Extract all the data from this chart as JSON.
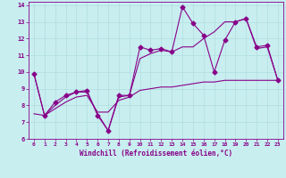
{
  "xlabel": "Windchill (Refroidissement éolien,°C)",
  "background_color": "#c8eef0",
  "grid_color": "#b0dde0",
  "line_color": "#880088",
  "xlim": [
    -0.5,
    23.5
  ],
  "ylim": [
    6,
    14.2
  ],
  "xticks": [
    0,
    1,
    2,
    3,
    4,
    5,
    6,
    7,
    8,
    9,
    10,
    11,
    12,
    13,
    14,
    15,
    16,
    17,
    18,
    19,
    20,
    21,
    22,
    23
  ],
  "yticks": [
    6,
    7,
    8,
    9,
    10,
    11,
    12,
    13,
    14
  ],
  "series1_x": [
    0,
    1,
    2,
    3,
    4,
    5,
    6,
    7,
    8,
    9,
    10,
    11,
    12,
    13,
    14,
    15,
    16,
    17,
    18,
    19,
    20,
    21,
    22,
    23
  ],
  "series1_y": [
    9.9,
    7.4,
    8.2,
    8.6,
    8.8,
    8.9,
    7.4,
    6.5,
    8.6,
    8.6,
    11.5,
    11.3,
    11.4,
    11.2,
    13.9,
    12.9,
    12.2,
    10.0,
    11.9,
    13.0,
    13.2,
    11.5,
    11.6,
    9.5
  ],
  "series2_x": [
    0,
    1,
    2,
    3,
    4,
    5,
    6,
    7,
    8,
    9,
    10,
    11,
    12,
    13,
    14,
    15,
    16,
    17,
    18,
    19,
    20,
    21,
    22,
    23
  ],
  "series2_y": [
    9.9,
    7.4,
    8.0,
    8.5,
    8.8,
    8.8,
    7.5,
    6.5,
    8.5,
    8.6,
    10.8,
    11.1,
    11.3,
    11.2,
    11.5,
    11.5,
    12.0,
    12.4,
    13.0,
    13.0,
    13.2,
    11.4,
    11.5,
    9.5
  ],
  "series3_x": [
    0,
    1,
    2,
    3,
    4,
    5,
    6,
    7,
    8,
    9,
    10,
    11,
    12,
    13,
    14,
    15,
    16,
    17,
    18,
    19,
    20,
    21,
    22,
    23
  ],
  "series3_y": [
    7.5,
    7.4,
    7.8,
    8.2,
    8.5,
    8.6,
    7.6,
    7.6,
    8.3,
    8.5,
    8.9,
    9.0,
    9.1,
    9.1,
    9.2,
    9.3,
    9.4,
    9.4,
    9.5,
    9.5,
    9.5,
    9.5,
    9.5,
    9.5
  ]
}
